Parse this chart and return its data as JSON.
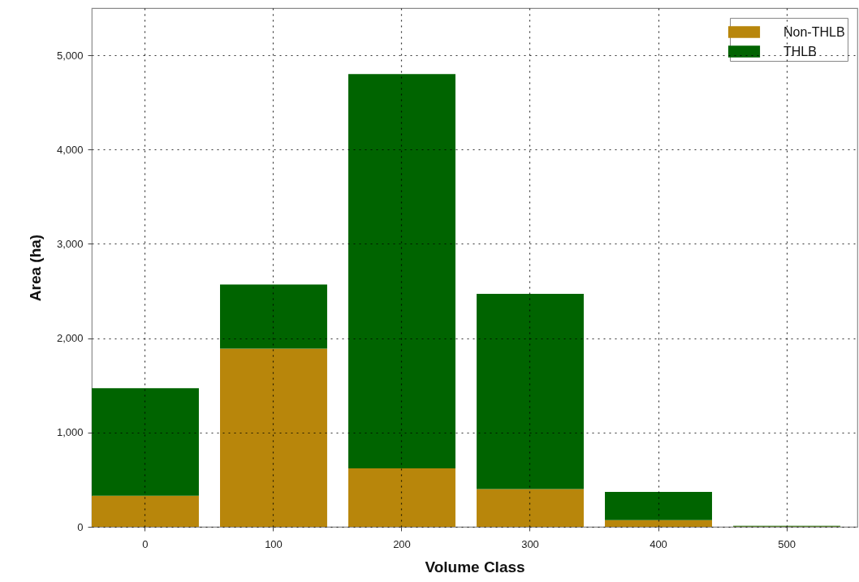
{
  "chart_data": {
    "type": "bar",
    "xlabel": "Volume Class",
    "ylabel": "Area (ha)",
    "categories": [
      "0",
      "100",
      "200",
      "300",
      "400",
      "500"
    ],
    "series": [
      {
        "name": "Non-THLB",
        "color": "#b8860b",
        "values": [
          330,
          1890,
          620,
          400,
          70,
          5
        ]
      },
      {
        "name": "THLB",
        "color": "#006400",
        "values": [
          1140,
          680,
          4180,
          2070,
          300,
          5
        ]
      }
    ],
    "stacked": true,
    "ylim": [
      0,
      5500
    ],
    "yticks": [
      0,
      {
        "value": 1000,
        "label": "1,000"
      },
      {
        "value": 2000,
        "label": "2,000"
      },
      {
        "value": 3000,
        "label": "3,000"
      },
      {
        "value": 4000,
        "label": "4,000"
      },
      {
        "value": 5000,
        "label": "5,000"
      }
    ],
    "grid": true,
    "legend": "top right"
  }
}
